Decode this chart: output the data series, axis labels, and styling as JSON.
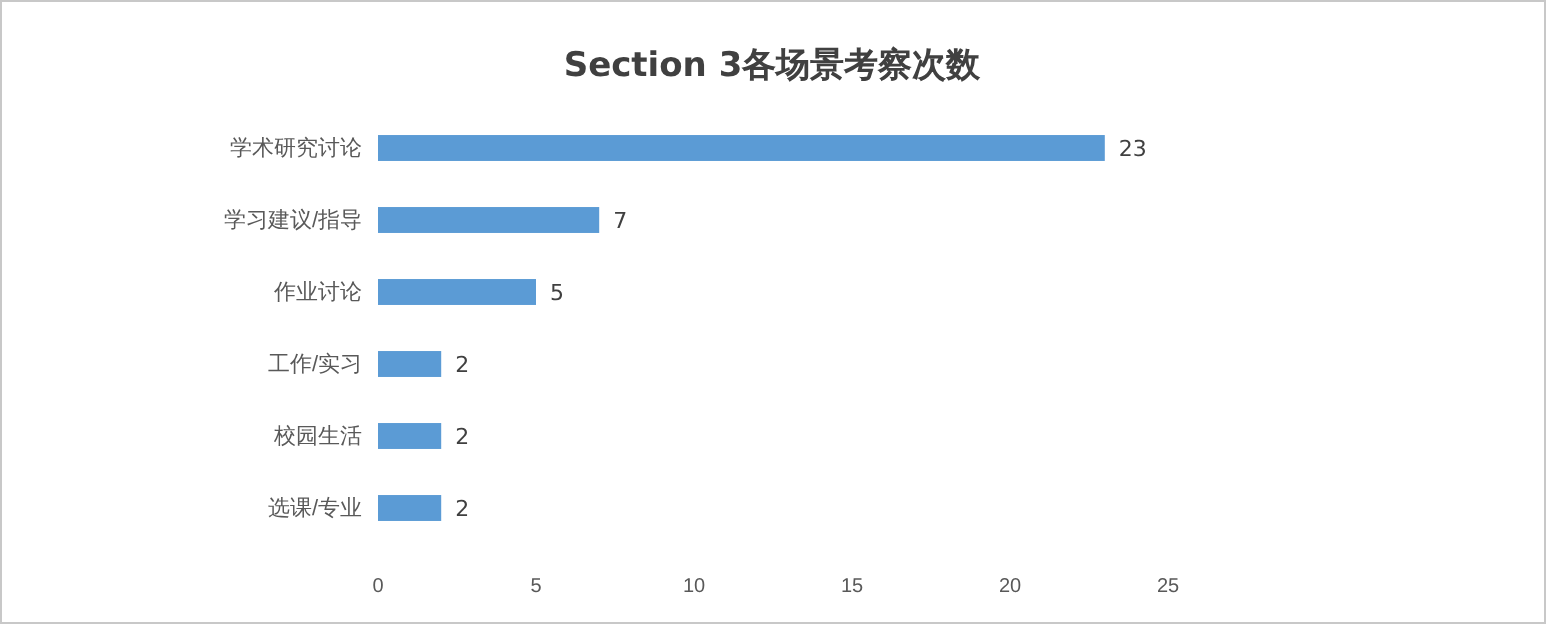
{
  "chart_data": {
    "type": "bar",
    "orientation": "horizontal",
    "title": "Section 3各场景考察次数",
    "categories": [
      "学术研究讨论",
      "学习建议/指导",
      "作业讨论",
      "工作/实习",
      "校园生活",
      "选课/专业"
    ],
    "values": [
      23,
      7,
      5,
      2,
      2,
      2
    ],
    "color": "#5b9bd5",
    "xlim": [
      0,
      25
    ],
    "xticks": [
      0,
      5,
      10,
      15,
      20,
      25
    ],
    "grid": false,
    "data_labels": true
  }
}
